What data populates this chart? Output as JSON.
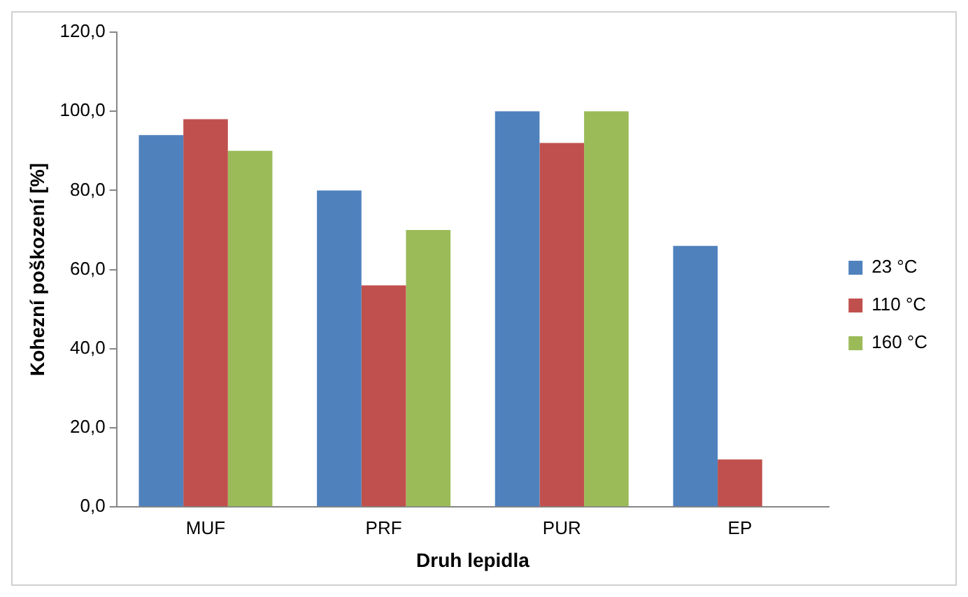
{
  "chart_data": {
    "type": "bar",
    "xlabel": "Druh lepidla",
    "ylabel": "Kohezní poškození [%]",
    "categories": [
      "MUF",
      "PRF",
      "PUR",
      "EP"
    ],
    "series": [
      {
        "name": "23 °C",
        "color": "#4f81bd",
        "values": [
          94,
          80,
          100,
          66
        ]
      },
      {
        "name": "110 °C",
        "color": "#c0504d",
        "values": [
          98,
          56,
          92,
          12
        ]
      },
      {
        "name": "160 °C",
        "color": "#9bbb59",
        "values": [
          90,
          70,
          100,
          null
        ]
      }
    ],
    "ylim": [
      0,
      120
    ],
    "yticks": [
      {
        "value": 0,
        "label": "0,0"
      },
      {
        "value": 20,
        "label": "20,0"
      },
      {
        "value": 40,
        "label": "40,0"
      },
      {
        "value": 60,
        "label": "60,0"
      },
      {
        "value": 80,
        "label": "80,0"
      },
      {
        "value": 100,
        "label": "100,0"
      },
      {
        "value": 120,
        "label": "120,0"
      }
    ],
    "grid": false,
    "legend": "right"
  }
}
